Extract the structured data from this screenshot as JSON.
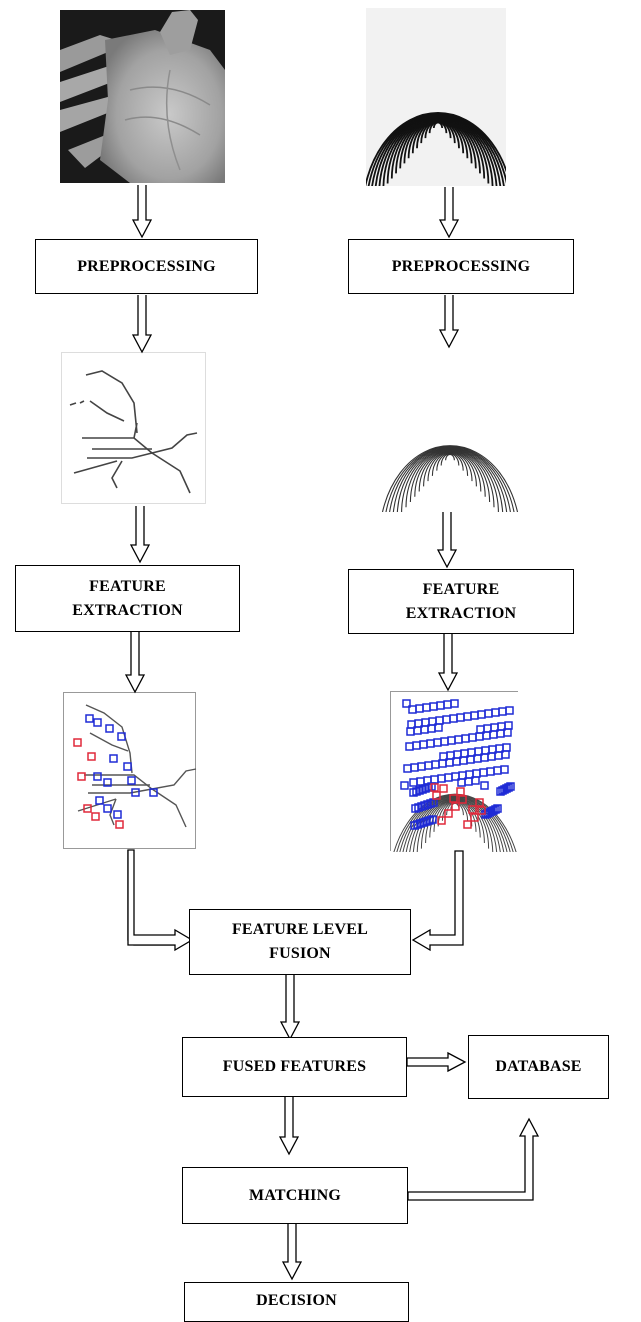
{
  "left_branch": {
    "preprocessing": "PREPROCESSING",
    "feature_extraction": "FEATURE\nEXTRACTION"
  },
  "right_branch": {
    "preprocessing": "PREPROCESSING",
    "feature_extraction": "FEATURE\nEXTRACTION"
  },
  "fusion": "FEATURE LEVEL\nFUSION",
  "fused_features": "FUSED FEATURES",
  "database": "DATABASE",
  "matching": "MATCHING",
  "decision": "DECISION",
  "colors": {
    "minutiae_blue": "#1f2bd6",
    "minutiae_red": "#e0283a",
    "line": "#000000"
  }
}
